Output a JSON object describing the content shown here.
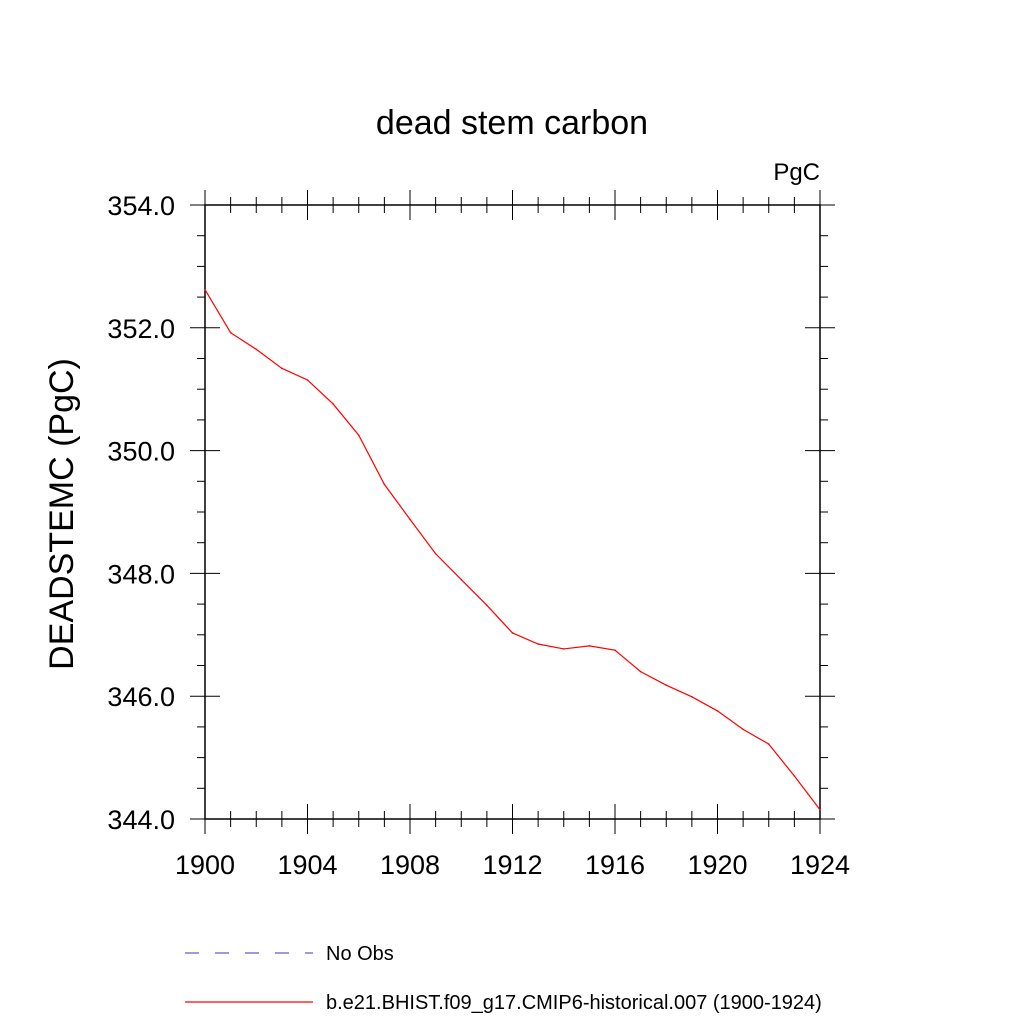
{
  "chart_data": {
    "type": "line",
    "title": "dead stem carbon",
    "units_label": "PgC",
    "xlabel": "",
    "ylabel": "DEADSTEMC  (PgC)",
    "xlim": [
      1900,
      1924
    ],
    "ylim": [
      344.0,
      354.0
    ],
    "x_major_ticks": [
      1900,
      1904,
      1908,
      1912,
      1916,
      1920,
      1924
    ],
    "x_tick_labels": [
      "1900",
      "1904",
      "1908",
      "1912",
      "1916",
      "1920",
      "1924"
    ],
    "x_minor_step": 1,
    "y_major_ticks": [
      344.0,
      346.0,
      348.0,
      350.0,
      352.0,
      354.0
    ],
    "y_tick_labels": [
      "344.0",
      "346.0",
      "348.0",
      "350.0",
      "352.0",
      "354.0"
    ],
    "y_minor_step": 0.5,
    "grid": false,
    "legend_position": "bottom",
    "series": [
      {
        "name": "b.e21.BHIST.f09_g17.CMIP6-historical.007 (1900-1924)",
        "color": "#ff0000",
        "dash": "solid",
        "x": [
          1900,
          1901,
          1902,
          1903,
          1904,
          1905,
          1906,
          1907,
          1908,
          1909,
          1910,
          1911,
          1912,
          1913,
          1914,
          1915,
          1916,
          1917,
          1918,
          1919,
          1920,
          1921,
          1922,
          1923,
          1924
        ],
        "values": [
          352.62,
          351.92,
          351.65,
          351.34,
          351.15,
          350.76,
          350.25,
          349.45,
          348.88,
          348.32,
          347.9,
          347.48,
          347.03,
          346.85,
          346.77,
          346.82,
          346.75,
          346.4,
          346.18,
          345.99,
          345.76,
          345.46,
          345.22,
          344.7,
          344.15
        ]
      }
    ],
    "legend": [
      {
        "label": "No Obs",
        "color": "#6a5acd",
        "dash": "dashed"
      },
      {
        "label": "b.e21.BHIST.f09_g17.CMIP6-historical.007 (1900-1924)",
        "color": "#ff0000",
        "dash": "solid"
      }
    ]
  }
}
